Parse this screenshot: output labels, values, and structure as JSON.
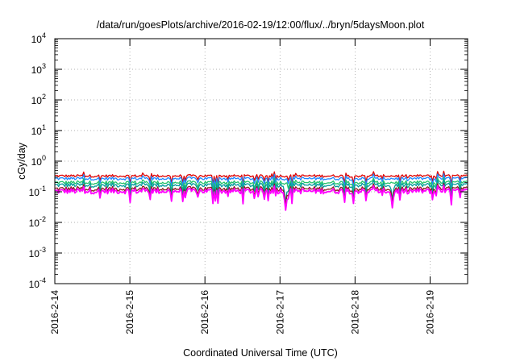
{
  "chart_data": {
    "type": "line",
    "title": "/data/run/goesPlots/archive/2016-02-19/12:00/flux/../bryn/5daysMoon.plot",
    "xlabel": "Coordinated Universal Time (UTC)",
    "ylabel": "cGy/day",
    "y_scale": "log",
    "ylim": [
      0.0001,
      10000
    ],
    "xlim": [
      "2016-02-14T00:00",
      "2016-02-19T12:00"
    ],
    "grid": true,
    "legend": "none",
    "x_tick_labels": [
      "2016-2-14",
      "2016-2-15",
      "2016-2-16",
      "2016-2-17",
      "2016-2-18",
      "2016-2-19"
    ],
    "y_ticks": [
      {
        "base": "10",
        "exp": "-4"
      },
      {
        "base": "10",
        "exp": "-3"
      },
      {
        "base": "10",
        "exp": "-2"
      },
      {
        "base": "10",
        "exp": "-1"
      },
      {
        "base": "10",
        "exp": "0"
      },
      {
        "base": "10",
        "exp": "1"
      },
      {
        "base": "10",
        "exp": "2"
      },
      {
        "base": "10",
        "exp": "3"
      },
      {
        "base": "10",
        "exp": "4"
      }
    ],
    "series": [
      {
        "color": "#dd0000",
        "baseline": 0.33
      },
      {
        "color": "#1e88ff",
        "baseline": 0.27
      },
      {
        "color": "#22c36a",
        "baseline": 0.2
      },
      {
        "color": "#009a9a",
        "baseline": 0.165
      },
      {
        "color": "#8a1f1f",
        "baseline": 0.125
      },
      {
        "color": "#ff00ff",
        "baseline": 0.105
      }
    ],
    "notable_dips": [
      {
        "x": "2016-02-17T02:00",
        "min_value": 0.025
      },
      {
        "x": "2016-02-18T12:00",
        "min_value": 0.03
      }
    ]
  }
}
